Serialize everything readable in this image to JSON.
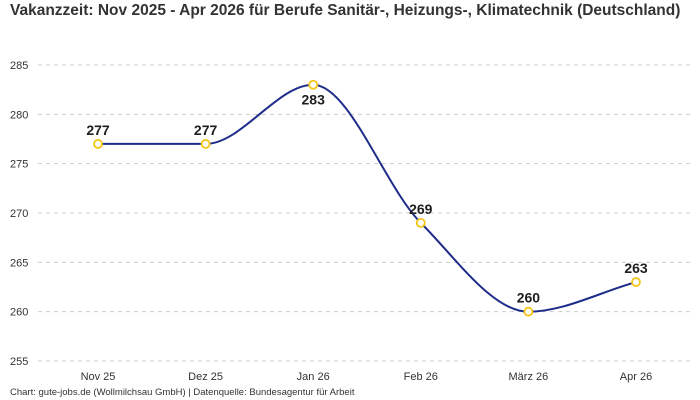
{
  "title": "Vakanzzeit: Nov 2025 - Apr 2026 für Berufe Sanitär-, Heizungs-, Klimatechnik (Deutschland)",
  "source": "Chart: gute-jobs.de (Wollmilchsau GmbH) | Datenquelle: Bundesagentur für Arbeit",
  "colors": {
    "line": "#1f2d8a",
    "marker_stroke": "#f5c518",
    "grid": "#cccccc"
  },
  "chart_data": {
    "type": "line",
    "title": "Vakanzzeit: Nov 2025 - Apr 2026 für Berufe Sanitär-, Heizungs-, Klimatechnik (Deutschland)",
    "categories": [
      "Nov 25",
      "Dez 25",
      "Jan 26",
      "Feb 26",
      "März 26",
      "Apr 26"
    ],
    "values": [
      277,
      277,
      283,
      269,
      260,
      263
    ],
    "data_labels": [
      "277",
      "277",
      "283",
      "269",
      "260",
      "263"
    ],
    "yticks": [
      255,
      260,
      265,
      270,
      275,
      280,
      285
    ],
    "ylim": [
      255,
      285
    ],
    "grid": true,
    "curve": "smooth"
  }
}
